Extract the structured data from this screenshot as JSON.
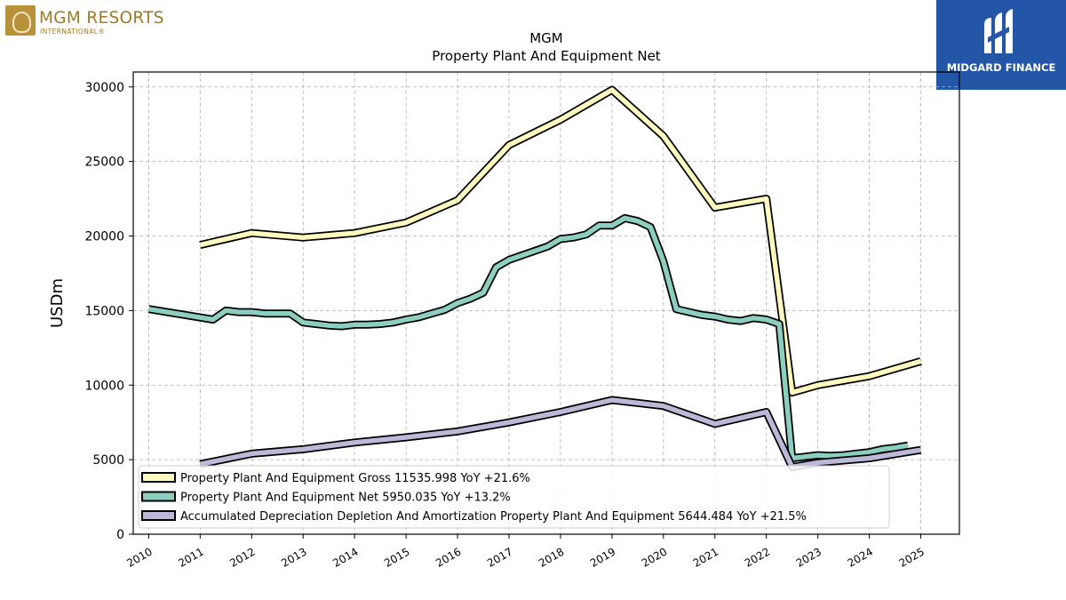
{
  "branding": {
    "left_logo": {
      "name": "MGM RESORTS",
      "sub": "INTERNATIONAL®",
      "color": "#a07a26"
    },
    "right_logo": {
      "name": "MIDGARD FINANCE",
      "color": "#2456a8"
    }
  },
  "chart_data": {
    "type": "line",
    "title": "MGM",
    "subtitle": "Property Plant And Equipment Net",
    "ylabel": "USDm",
    "xlabel": "",
    "ylim": [
      0,
      31000
    ],
    "xlim": [
      2009.7,
      2025.75
    ],
    "yticks": [
      0,
      5000,
      10000,
      15000,
      20000,
      25000,
      30000
    ],
    "xticks": [
      "2010",
      "2011",
      "2012",
      "2013",
      "2014",
      "2015",
      "2016",
      "2017",
      "2018",
      "2019",
      "2020",
      "2021",
      "2022",
      "2023",
      "2024",
      "2025"
    ],
    "grid": true,
    "legend_position": "lower-left",
    "series": [
      {
        "name": "Property Plant And Equipment Gross",
        "legend": "Property Plant And Equipment Gross  11535.998 YoY +21.6%",
        "color": "#fffbbf",
        "x": [
          2011.0,
          2012.0,
          2013.0,
          2014.0,
          2015.0,
          2016.0,
          2017.0,
          2018.0,
          2019.0,
          2020.0,
          2021.0,
          2022.0,
          2022.5,
          2023.0,
          2024.0,
          2025.0
        ],
        "y": [
          19400,
          20200,
          19900,
          20200,
          20900,
          22400,
          26100,
          27800,
          29800,
          26700,
          21900,
          22500,
          9500,
          10000,
          10600,
          11600
        ]
      },
      {
        "name": "Property Plant And Equipment Net",
        "legend": "Property Plant And Equipment Net  5950.035 YoY +13.2%",
        "color": "#8ccfc0",
        "x": [
          2010.0,
          2011.25,
          2011.5,
          2011.75,
          2012.0,
          2012.25,
          2012.5,
          2012.75,
          2013.0,
          2013.25,
          2013.5,
          2013.75,
          2014.0,
          2014.25,
          2014.5,
          2014.75,
          2015.0,
          2015.25,
          2015.5,
          2015.75,
          2016.0,
          2016.25,
          2016.5,
          2016.75,
          2017.0,
          2017.25,
          2017.5,
          2017.75,
          2018.0,
          2018.25,
          2018.5,
          2018.75,
          2019.0,
          2019.25,
          2019.5,
          2019.75,
          2020.0,
          2020.25,
          2020.5,
          2020.75,
          2021.0,
          2021.25,
          2021.5,
          2021.75,
          2022.0,
          2022.25,
          2022.5,
          2022.75,
          2023.0,
          2023.25,
          2023.5,
          2023.75,
          2024.0,
          2024.25,
          2024.5,
          2024.75
        ],
        "y": [
          15100,
          14400,
          15000,
          14900,
          14900,
          14800,
          14800,
          14800,
          14200,
          14100,
          14000,
          13950,
          14050,
          14050,
          14100,
          14200,
          14400,
          14550,
          14800,
          15050,
          15500,
          15800,
          16200,
          17900,
          18400,
          18700,
          19000,
          19300,
          19800,
          19900,
          20100,
          20700,
          20700,
          21200,
          21000,
          20600,
          18300,
          15100,
          14900,
          14700,
          14600,
          14400,
          14300,
          14500,
          14400,
          14100,
          5100,
          5200,
          5300,
          5250,
          5300,
          5400,
          5500,
          5700,
          5800,
          5950
        ]
      },
      {
        "name": "Accumulated Depreciation Depletion And Amortization Property Plant And Equipment",
        "legend": "Accumulated Depreciation Depletion And Amortization Property Plant And Equipment  5644.484 YoY +21.5%",
        "color": "#bcb8d8",
        "x": [
          2011.0,
          2012.0,
          2013.0,
          2014.0,
          2015.0,
          2016.0,
          2017.0,
          2018.0,
          2019.0,
          2020.0,
          2021.0,
          2022.0,
          2022.5,
          2023.0,
          2024.0,
          2025.0
        ],
        "y": [
          4700,
          5400,
          5700,
          6150,
          6500,
          6900,
          7500,
          8200,
          9000,
          8600,
          7400,
          8200,
          4500,
          4800,
          5100,
          5650
        ]
      }
    ]
  }
}
